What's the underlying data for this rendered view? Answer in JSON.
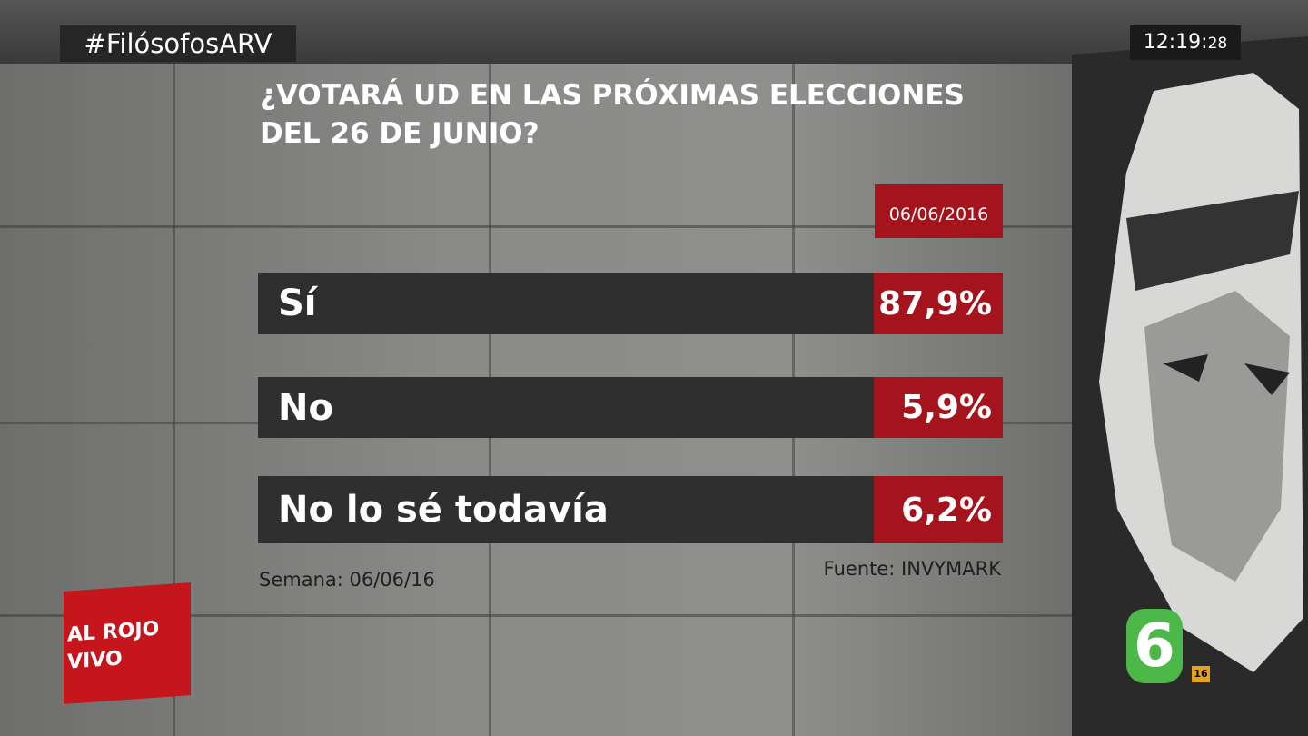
{
  "hashtag": "#FilósofosARV",
  "clock": {
    "time": "12:19",
    "seconds": "28"
  },
  "question": [
    "¿VOTARÁ UD EN LAS PRÓXIMAS ELECCIONES",
    "DEL 26 DE JUNIO?"
  ],
  "date": "06/06/2016",
  "rows": [
    {
      "label": "Sí",
      "value": "87,9%"
    },
    {
      "label": "No",
      "value": "5,9%"
    },
    {
      "label": "No lo sé todavía",
      "value": "6,2%"
    }
  ],
  "week": "Semana: 06/06/16",
  "source": "Fuente: INVYMARK",
  "show_logo": [
    "AL ROJO",
    "VIVO"
  ],
  "channel": "6",
  "age_rating": "16"
}
